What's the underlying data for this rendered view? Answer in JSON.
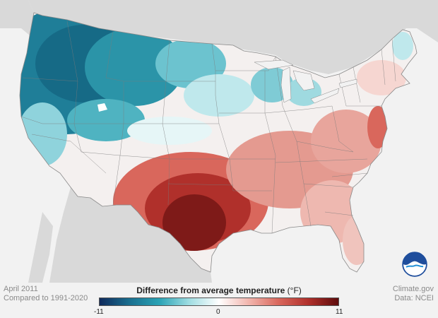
{
  "footer": {
    "date": "April 2011",
    "baseline": "Compared to 1991-2020",
    "credit": "Climate.gov",
    "source": "Data: NCEI"
  },
  "legend": {
    "title": "Difference from average temperature",
    "unit": "(°F)",
    "min_label": "-11",
    "zero_label": "0",
    "max_label": "11",
    "min": -11,
    "max": 11,
    "colors": [
      "#0f2a5c",
      "#1a6f8f",
      "#2aa3b5",
      "#9fdde2",
      "#ffffff",
      "#f2b5ad",
      "#d9675c",
      "#b0302b",
      "#5e0c0c"
    ]
  },
  "logo": {
    "name": "noaa-logo",
    "text": "NOAA"
  },
  "map": {
    "region": "contiguous-us",
    "ocean_color": "#f2f2f2",
    "land_outside_color": "#d9d9d9"
  }
}
